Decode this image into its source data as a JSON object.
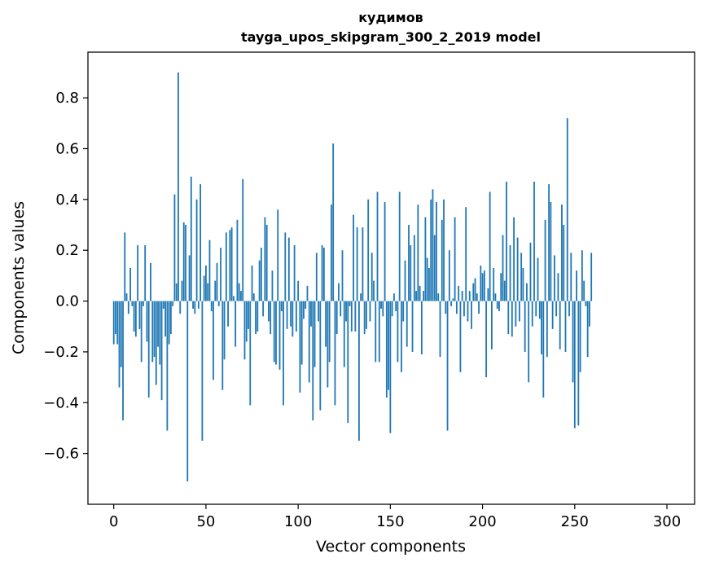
{
  "chart_data": {
    "type": "bar",
    "title_line1": "кудимов",
    "title_line2": "tayga_upos_skipgram_300_2_2019 model",
    "xlabel": "Vector components",
    "ylabel": "Components values",
    "xlim": [
      -14,
      315
    ],
    "ylim": [
      -0.8,
      0.98
    ],
    "x_ticks": [
      0,
      50,
      100,
      150,
      200,
      250,
      300
    ],
    "x_tick_labels": [
      "0",
      "50",
      "100",
      "150",
      "200",
      "250",
      "300"
    ],
    "y_ticks": [
      -0.6,
      -0.4,
      -0.2,
      0.0,
      0.2,
      0.4,
      0.6,
      0.8
    ],
    "y_tick_labels": [
      "−0.6",
      "−0.4",
      "−0.2",
      "0.0",
      "0.2",
      "0.4",
      "0.6",
      "0.8"
    ],
    "bar_color": "#1f77b4",
    "grid": false,
    "values": [
      -0.17,
      -0.13,
      -0.17,
      -0.34,
      -0.26,
      -0.47,
      0.27,
      0.03,
      -0.05,
      0.13,
      -0.02,
      -0.12,
      -0.14,
      0.22,
      -0.11,
      -0.24,
      -0.02,
      0.22,
      -0.16,
      -0.38,
      0.15,
      -0.24,
      -0.22,
      -0.33,
      -0.18,
      -0.25,
      -0.39,
      -0.03,
      -0.14,
      -0.51,
      -0.17,
      -0.13,
      -0.02,
      0.42,
      0.07,
      0.9,
      -0.05,
      0.08,
      0.31,
      0.3,
      -0.71,
      0.18,
      0.49,
      -0.03,
      -0.05,
      0.4,
      -0.03,
      0.46,
      -0.55,
      0.1,
      0.14,
      0.07,
      0.24,
      -0.04,
      -0.31,
      0.08,
      0.15,
      -0.02,
      0.21,
      -0.35,
      -0.23,
      0.27,
      -0.1,
      0.28,
      0.29,
      0.02,
      -0.18,
      0.32,
      0.07,
      0.04,
      0.48,
      -0.23,
      -0.16,
      -0.11,
      -0.41,
      0.14,
      0.03,
      -0.13,
      -0.12,
      0.16,
      0.21,
      -0.06,
      0.33,
      0.3,
      -0.08,
      -0.13,
      0.12,
      -0.24,
      -0.25,
      0.36,
      -0.27,
      -0.04,
      -0.41,
      0.27,
      -0.11,
      0.25,
      -0.1,
      -0.14,
      0.22,
      -0.12,
      0.08,
      -0.36,
      -0.25,
      -0.07,
      -0.03,
      0.06,
      -0.32,
      -0.1,
      -0.47,
      -0.26,
      0.19,
      -0.08,
      -0.43,
      0.22,
      0.21,
      -0.18,
      -0.34,
      -0.24,
      0.38,
      0.62,
      -0.41,
      -0.13,
      0.07,
      -0.06,
      0.2,
      -0.26,
      -0.08,
      -0.48,
      -0.02,
      -0.12,
      0.34,
      -0.12,
      0.29,
      -0.55,
      0.03,
      0.29,
      -0.13,
      -0.11,
      0.4,
      -0.08,
      0.19,
      0.08,
      -0.24,
      0.43,
      -0.24,
      -0.03,
      -0.06,
      0.39,
      -0.38,
      -0.35,
      -0.52,
      -0.06,
      0.03,
      -0.04,
      -0.24,
      0.43,
      -0.28,
      -0.08,
      0.16,
      -0.18,
      0.3,
      0.22,
      -0.2,
      0.26,
      0.04,
      0.38,
      0.06,
      -0.21,
      0.04,
      0.33,
      0.17,
      0.13,
      0.4,
      0.44,
      0.26,
      0.39,
      0.03,
      -0.22,
      0.32,
      0.4,
      -0.05,
      -0.51,
      0.2,
      -0.02,
      0.01,
      0.33,
      -0.05,
      0.06,
      -0.28,
      0.04,
      -0.06,
      0.37,
      -0.08,
      0.04,
      -0.11,
      0.07,
      0.09,
      0.03,
      -0.05,
      0.14,
      0.11,
      0.12,
      -0.3,
      0.05,
      0.43,
      -0.19,
      0.13,
      0.03,
      -0.03,
      -0.04,
      0.11,
      0.26,
      0.08,
      0.47,
      -0.13,
      0.22,
      -0.14,
      0.33,
      -0.1,
      0.25,
      -0.08,
      0.19,
      0.13,
      -0.2,
      0.07,
      -0.32,
      0.23,
      -0.1,
      0.47,
      -0.06,
      0.17,
      -0.07,
      -0.21,
      -0.38,
      0.32,
      -0.22,
      0.46,
      0.39,
      -0.11,
      0.18,
      -0.06,
      0.11,
      -0.19,
      0.38,
      0.3,
      -0.2,
      0.72,
      -0.06,
      0.19,
      -0.32,
      -0.5,
      0.12,
      -0.49,
      -0.28,
      0.2,
      0.08,
      -0.02,
      -0.22,
      -0.1,
      0.19
    ]
  }
}
